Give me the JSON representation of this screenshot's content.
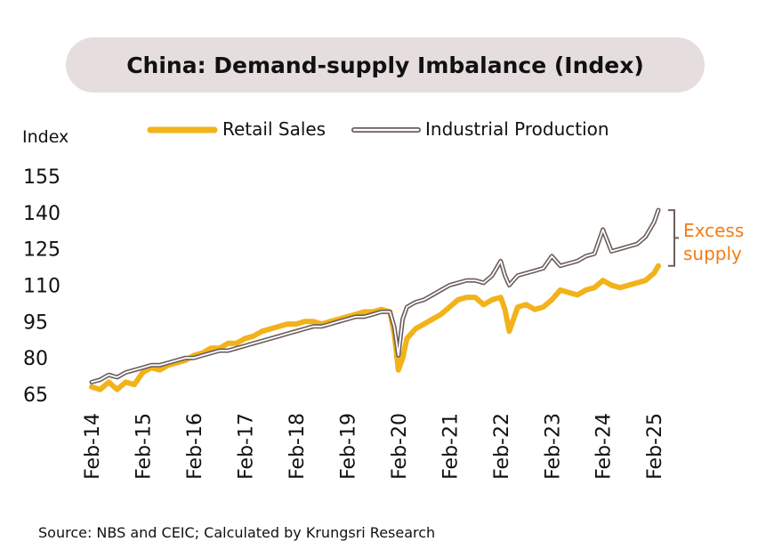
{
  "chart_data": {
    "type": "line",
    "title": "China: Demand-supply Imbalance (Index)",
    "ylabel": "Index",
    "yticks": [
      65,
      80,
      95,
      110,
      125,
      140,
      155
    ],
    "ylim": [
      65,
      155
    ],
    "xlim": [
      0,
      133
    ],
    "x_tick_labels": [
      "Feb-14",
      "Feb-15",
      "Feb-16",
      "Feb-17",
      "Feb-18",
      "Feb-19",
      "Feb-20",
      "Feb-21",
      "Feb-22",
      "Feb-23",
      "Feb-24",
      "Feb-25"
    ],
    "x_tick_positions": [
      0,
      12,
      24,
      36,
      48,
      60,
      72,
      84,
      96,
      108,
      120,
      132
    ],
    "legend_position": "top",
    "series": [
      {
        "name": "Retail Sales",
        "color": "#f2b21a",
        "points": [
          [
            0,
            68
          ],
          [
            2,
            67
          ],
          [
            4,
            70
          ],
          [
            6,
            67
          ],
          [
            8,
            70
          ],
          [
            10,
            69
          ],
          [
            12,
            74
          ],
          [
            14,
            76
          ],
          [
            16,
            75
          ],
          [
            18,
            77
          ],
          [
            20,
            78
          ],
          [
            22,
            79
          ],
          [
            24,
            81
          ],
          [
            26,
            82
          ],
          [
            28,
            84
          ],
          [
            30,
            84
          ],
          [
            32,
            86
          ],
          [
            34,
            86
          ],
          [
            36,
            88
          ],
          [
            38,
            89
          ],
          [
            40,
            91
          ],
          [
            42,
            92
          ],
          [
            44,
            93
          ],
          [
            46,
            94
          ],
          [
            48,
            94
          ],
          [
            50,
            95
          ],
          [
            52,
            95
          ],
          [
            54,
            94
          ],
          [
            56,
            95
          ],
          [
            58,
            96
          ],
          [
            60,
            97
          ],
          [
            62,
            98
          ],
          [
            64,
            99
          ],
          [
            66,
            99
          ],
          [
            68,
            100
          ],
          [
            70,
            99
          ],
          [
            71,
            90
          ],
          [
            72,
            75
          ],
          [
            73,
            80
          ],
          [
            74,
            88
          ],
          [
            76,
            92
          ],
          [
            78,
            94
          ],
          [
            80,
            96
          ],
          [
            82,
            98
          ],
          [
            84,
            101
          ],
          [
            86,
            104
          ],
          [
            88,
            105
          ],
          [
            90,
            105
          ],
          [
            92,
            102
          ],
          [
            94,
            104
          ],
          [
            96,
            105
          ],
          [
            97,
            100
          ],
          [
            98,
            91
          ],
          [
            99,
            96
          ],
          [
            100,
            101
          ],
          [
            102,
            102
          ],
          [
            104,
            100
          ],
          [
            106,
            101
          ],
          [
            108,
            104
          ],
          [
            110,
            108
          ],
          [
            112,
            107
          ],
          [
            114,
            106
          ],
          [
            116,
            108
          ],
          [
            118,
            109
          ],
          [
            120,
            112
          ],
          [
            122,
            110
          ],
          [
            124,
            109
          ],
          [
            126,
            110
          ],
          [
            128,
            111
          ],
          [
            130,
            112
          ],
          [
            132,
            115
          ],
          [
            133,
            118
          ]
        ]
      },
      {
        "name": "Industrial Production",
        "color": "#6b5e5b",
        "points": [
          [
            0,
            70
          ],
          [
            2,
            71
          ],
          [
            4,
            73
          ],
          [
            6,
            72
          ],
          [
            8,
            74
          ],
          [
            10,
            75
          ],
          [
            12,
            76
          ],
          [
            14,
            77
          ],
          [
            16,
            77
          ],
          [
            18,
            78
          ],
          [
            20,
            79
          ],
          [
            22,
            80
          ],
          [
            24,
            80
          ],
          [
            26,
            81
          ],
          [
            28,
            82
          ],
          [
            30,
            83
          ],
          [
            32,
            83
          ],
          [
            34,
            84
          ],
          [
            36,
            85
          ],
          [
            38,
            86
          ],
          [
            40,
            87
          ],
          [
            42,
            88
          ],
          [
            44,
            89
          ],
          [
            46,
            90
          ],
          [
            48,
            91
          ],
          [
            50,
            92
          ],
          [
            52,
            93
          ],
          [
            54,
            93
          ],
          [
            56,
            94
          ],
          [
            58,
            95
          ],
          [
            60,
            96
          ],
          [
            62,
            97
          ],
          [
            64,
            97
          ],
          [
            66,
            98
          ],
          [
            68,
            99
          ],
          [
            70,
            99
          ],
          [
            71,
            93
          ],
          [
            72,
            81
          ],
          [
            73,
            96
          ],
          [
            74,
            101
          ],
          [
            76,
            103
          ],
          [
            78,
            104
          ],
          [
            80,
            106
          ],
          [
            82,
            108
          ],
          [
            84,
            110
          ],
          [
            86,
            111
          ],
          [
            88,
            112
          ],
          [
            90,
            112
          ],
          [
            92,
            111
          ],
          [
            94,
            114
          ],
          [
            96,
            120
          ],
          [
            97,
            114
          ],
          [
            98,
            110
          ],
          [
            100,
            114
          ],
          [
            102,
            115
          ],
          [
            104,
            116
          ],
          [
            106,
            117
          ],
          [
            108,
            122
          ],
          [
            110,
            118
          ],
          [
            112,
            119
          ],
          [
            114,
            120
          ],
          [
            116,
            122
          ],
          [
            118,
            123
          ],
          [
            120,
            133
          ],
          [
            122,
            124
          ],
          [
            124,
            125
          ],
          [
            126,
            126
          ],
          [
            128,
            127
          ],
          [
            130,
            130
          ],
          [
            132,
            136
          ],
          [
            133,
            141
          ]
        ]
      }
    ],
    "annotation": {
      "lines": [
        "Excess",
        "supply"
      ],
      "color": "#f07d16",
      "bracket_from": 141,
      "bracket_to": 118
    },
    "source": "Source: NBS and CEIC; Calculated by Krungsri Research"
  }
}
